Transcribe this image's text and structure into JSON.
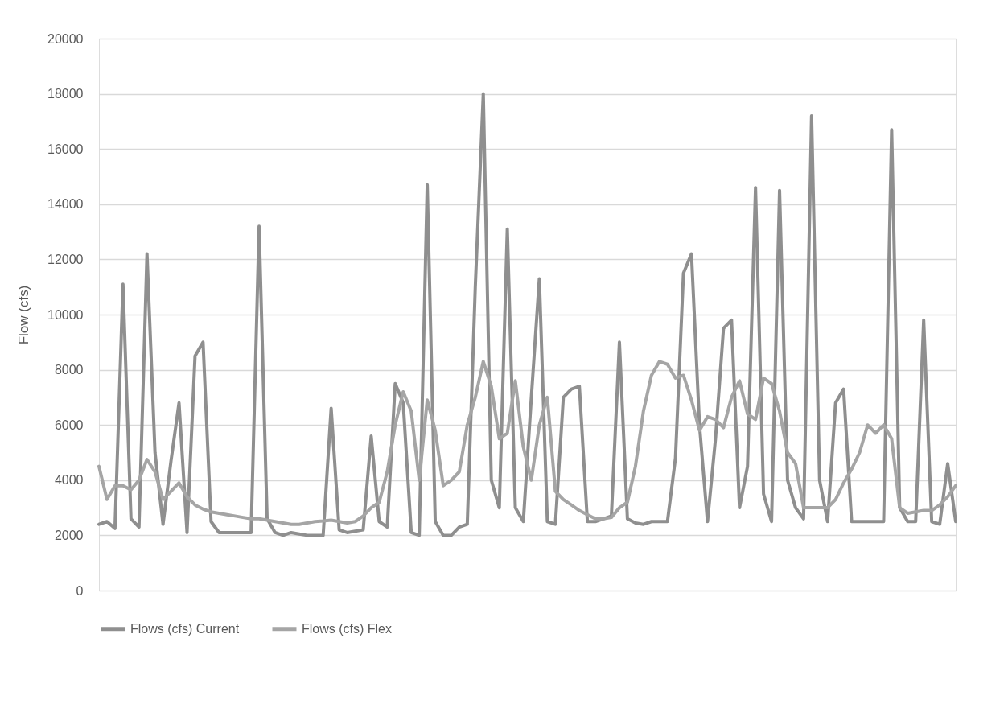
{
  "chart_data": {
    "type": "line",
    "ylabel": "Flow (cfs)",
    "ylim": [
      0,
      20000
    ],
    "yticks": [
      0,
      2000,
      4000,
      6000,
      8000,
      10000,
      12000,
      14000,
      16000,
      18000,
      20000
    ],
    "grid": "y",
    "legend": "bottom",
    "line_style": "solid",
    "categories": [
      null,
      null,
      null,
      null,
      null,
      null,
      null,
      null,
      null,
      null,
      null,
      null,
      null,
      null,
      null,
      null,
      null,
      null,
      null,
      null,
      null,
      null,
      null,
      null,
      null,
      null,
      null,
      null,
      null,
      null,
      null,
      null,
      null,
      null,
      null,
      null,
      null,
      null,
      null,
      null,
      null,
      null,
      null,
      null,
      null,
      null,
      null,
      null,
      null,
      null,
      null,
      null,
      null,
      null,
      null,
      null,
      null,
      null,
      null,
      null,
      null,
      null,
      null,
      null,
      null,
      null,
      null,
      null,
      null,
      null,
      null,
      null,
      null,
      null,
      null,
      null,
      null,
      null,
      null,
      null,
      null,
      null,
      null,
      null,
      null,
      null,
      null,
      null,
      null,
      null,
      null,
      null,
      null,
      null,
      null,
      null,
      null,
      null,
      null,
      null,
      null,
      null,
      null,
      null,
      null,
      null,
      null,
      null
    ],
    "series": [
      {
        "name": "Flows (cfs) Current",
        "color": "#8f8f8f",
        "values": [
          2400,
          2500,
          2250,
          11100,
          2600,
          2300,
          12200,
          5000,
          2400,
          4700,
          6800,
          2100,
          8500,
          9000,
          2500,
          2100,
          2100,
          2100,
          2100,
          2100,
          13200,
          2600,
          2100,
          2000,
          2100,
          2050,
          2000,
          2000,
          2000,
          6600,
          2200,
          2100,
          2150,
          2200,
          5600,
          2500,
          2300,
          7500,
          6800,
          2100,
          2000,
          14700,
          2500,
          2000,
          2000,
          2300,
          2400,
          11000,
          18000,
          4000,
          3000,
          13100,
          3000,
          2500,
          7000,
          11300,
          2500,
          2400,
          7000,
          7300,
          7400,
          2500,
          2500,
          2600,
          2700,
          9000,
          2600,
          2450,
          2400,
          2500,
          2500,
          2500,
          4800,
          11500,
          12200,
          6000,
          2500,
          5500,
          9500,
          9800,
          3000,
          4500,
          14600,
          3500,
          2500,
          14500,
          4000,
          3000,
          2600,
          17200,
          4000,
          2500,
          6800,
          7300,
          2500,
          2500,
          2500,
          2500,
          2500,
          16700,
          3000,
          2500,
          2500,
          9800,
          2500,
          2400,
          4600,
          2500
        ]
      },
      {
        "name": "Flows (cfs) Flex",
        "color": "#a5a5a5",
        "values": [
          4500,
          3300,
          3800,
          3800,
          3650,
          4000,
          4750,
          4300,
          3300,
          3600,
          3900,
          3400,
          3100,
          2950,
          2850,
          2800,
          2750,
          2700,
          2650,
          2600,
          2600,
          2550,
          2500,
          2450,
          2400,
          2400,
          2450,
          2500,
          2520,
          2550,
          2500,
          2450,
          2500,
          2700,
          3000,
          3200,
          4300,
          6000,
          7200,
          6500,
          4000,
          6900,
          5800,
          3800,
          4000,
          4300,
          6000,
          7000,
          8300,
          7400,
          5500,
          5700,
          7600,
          5200,
          4000,
          6000,
          7000,
          3600,
          3300,
          3100,
          2900,
          2750,
          2600,
          2600,
          2650,
          3000,
          3200,
          4500,
          6500,
          7800,
          8300,
          8200,
          7700,
          7800,
          6900,
          5800,
          6300,
          6200,
          5900,
          7000,
          7600,
          6400,
          6200,
          7700,
          7500,
          6500,
          5000,
          4600,
          3000,
          3000,
          3000,
          3000,
          3300,
          3900,
          4400,
          5000,
          6000,
          5700,
          6000,
          5500,
          3000,
          2800,
          2850,
          2900,
          2900,
          3100,
          3400,
          3800
        ]
      }
    ]
  }
}
